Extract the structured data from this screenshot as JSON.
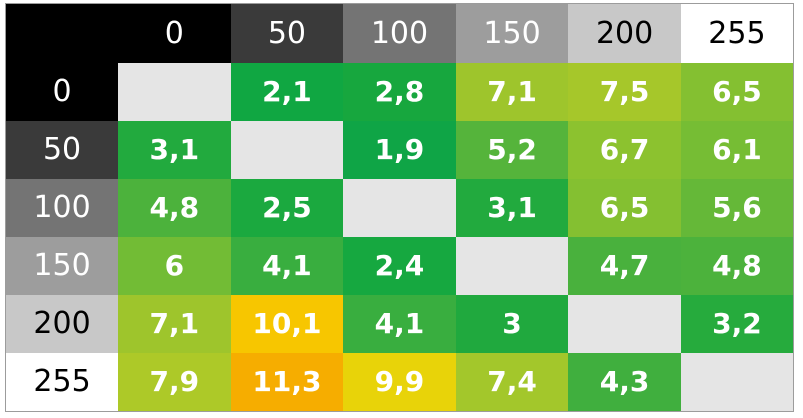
{
  "chart_data": {
    "type": "heatmap",
    "title": "",
    "col_headers": [
      "0",
      "50",
      "100",
      "150",
      "200",
      "255"
    ],
    "row_headers": [
      "0",
      "50",
      "100",
      "150",
      "200",
      "255"
    ],
    "values_display": [
      [
        null,
        "2,1",
        "2,8",
        "7,1",
        "7,5",
        "6,5"
      ],
      [
        "3,1",
        null,
        "1,9",
        "5,2",
        "6,7",
        "6,1"
      ],
      [
        "4,8",
        "2,5",
        null,
        "3,1",
        "6,5",
        "5,6"
      ],
      [
        "6",
        "4,1",
        "2,4",
        null,
        "4,7",
        "4,8"
      ],
      [
        "7,1",
        "10,1",
        "4,1",
        "3",
        null,
        "3,2"
      ],
      [
        "7,9",
        "11,3",
        "9,9",
        "7,4",
        "4,3",
        null
      ]
    ],
    "values_numeric": [
      [
        null,
        2.1,
        2.8,
        7.1,
        7.5,
        6.5
      ],
      [
        3.1,
        null,
        1.9,
        5.2,
        6.7,
        6.1
      ],
      [
        4.8,
        2.5,
        null,
        3.1,
        6.5,
        5.6
      ],
      [
        6.0,
        4.1,
        2.4,
        null,
        4.7,
        4.8
      ],
      [
        7.1,
        10.1,
        4.1,
        3.0,
        null,
        3.2
      ],
      [
        7.9,
        11.3,
        9.9,
        7.4,
        4.3,
        null
      ]
    ],
    "cell_colors": [
      [
        null,
        "#10a742",
        "#17a73e",
        "#9ec52c",
        "#a6c72a",
        "#84c031"
      ],
      [
        "#22aa3e",
        null,
        "#0fa546",
        "#55b43b",
        "#8cc22f",
        "#76bd34"
      ],
      [
        "#4cb23c",
        "#1ba93f",
        null,
        "#22aa3e",
        "#84c031",
        "#65b838"
      ],
      [
        "#72bc35",
        "#39ae3f",
        "#16a840",
        null,
        "#49b13d",
        "#4cb23c"
      ],
      [
        "#9ec52c",
        "#f7c600",
        "#39ae3f",
        "#20a93e",
        null,
        "#26ab3d"
      ],
      [
        "#adc928",
        "#f6ad00",
        "#e8d309",
        "#a3c72b",
        "#40af3e",
        null
      ]
    ],
    "header_bg": [
      "#000000",
      "#3a3a3a",
      "#747474",
      "#9d9d9d",
      "#c8c8c8",
      "#ffffff"
    ],
    "header_fg": [
      "#ffffff",
      "#ffffff",
      "#ffffff",
      "#ffffff",
      "#000000",
      "#000000"
    ],
    "corner_bg": "#000000",
    "diagonal_color": "#e5e5e5",
    "value_text_color": "#ffffff",
    "grid_border_color": "#9c9c9c",
    "legend_position": "none",
    "grid": false
  }
}
